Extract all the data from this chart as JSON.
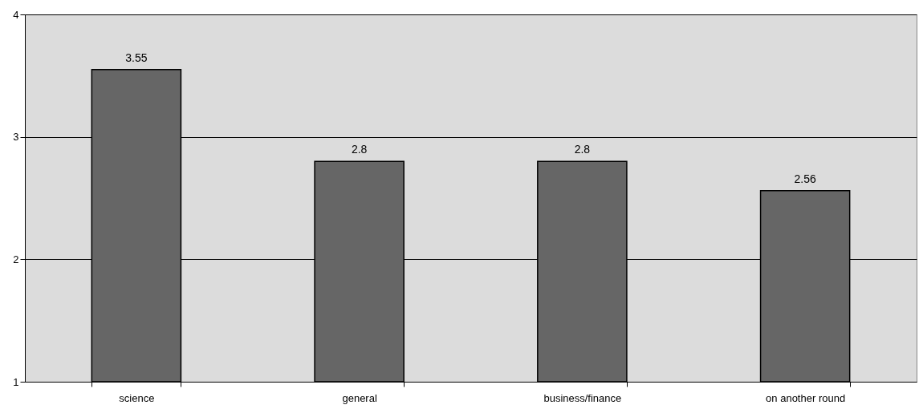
{
  "chart_data": {
    "type": "bar",
    "categories": [
      "science",
      "general",
      "business/finance",
      "on another round"
    ],
    "values": [
      3.55,
      2.8,
      2.8,
      2.56
    ],
    "color": "#666666",
    "ylim": [
      1,
      4
    ],
    "yticks": [
      1,
      2,
      3,
      4
    ],
    "grid": "y",
    "data_labels": true
  }
}
